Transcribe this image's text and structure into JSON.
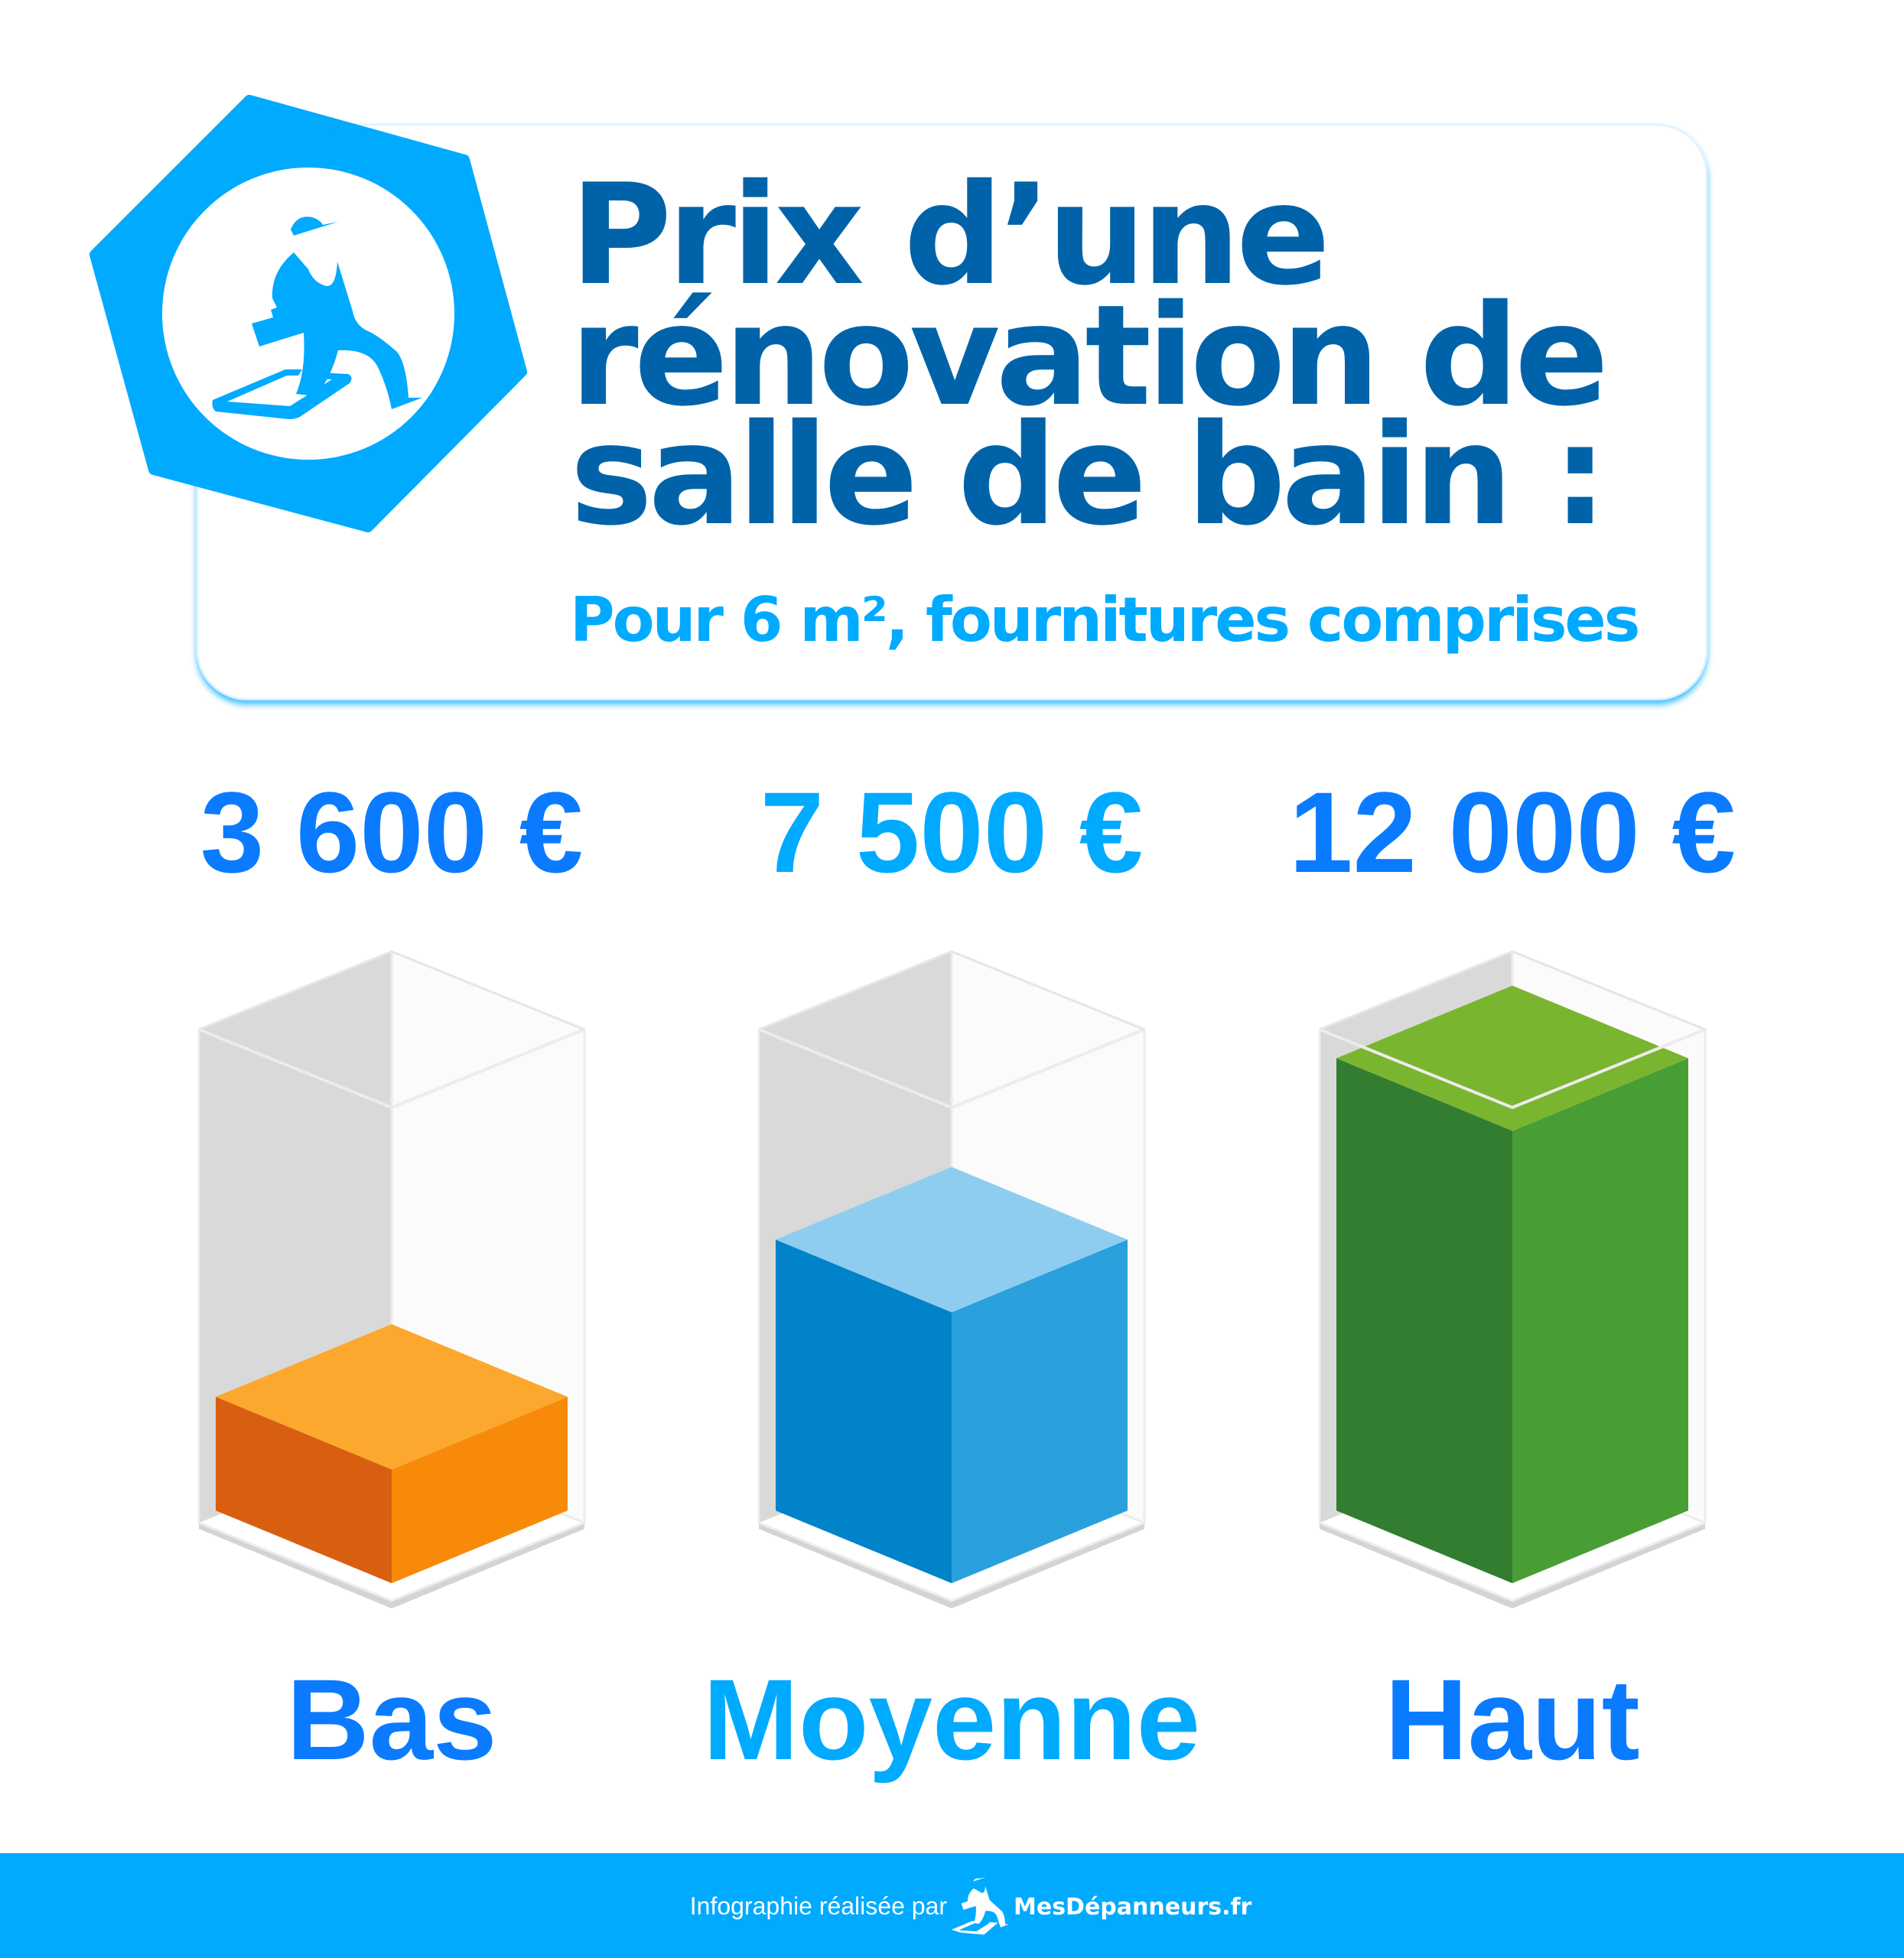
{
  "header": {
    "title_lines": [
      "Prix d’une",
      "rénovation de",
      "salle de bain :"
    ],
    "subtitle": "Pour 6 m², fournitures comprises",
    "logo_icon": "handyman-on-phone-icon"
  },
  "chart_data": {
    "type": "bar",
    "style": "3d-isometric",
    "categories": [
      "Bas",
      "Moyenne",
      "Haut"
    ],
    "values": [
      3600,
      7500,
      12000
    ],
    "value_labels": [
      "3 600 €",
      "7 500 €",
      "12 000 €"
    ],
    "unit": "€",
    "colors": {
      "Bas": {
        "top": "#fca82f",
        "left": "#d95f10",
        "right": "#f88a0a",
        "label": "#0a7bff"
      },
      "Moyenne": {
        "top": "#8ecdf0",
        "left": "#0083c8",
        "right": "#2aa0dc",
        "label": "#00aaff"
      },
      "Haut": {
        "top": "#7ab530",
        "left": "#327d30",
        "right": "#489e35",
        "label": "#0a7bff"
      }
    },
    "grid": false,
    "legend": "none"
  },
  "footer": {
    "credit": "Infographie réalisée par",
    "brand": "MesDépanneurs.fr",
    "background": "#00aaff"
  }
}
